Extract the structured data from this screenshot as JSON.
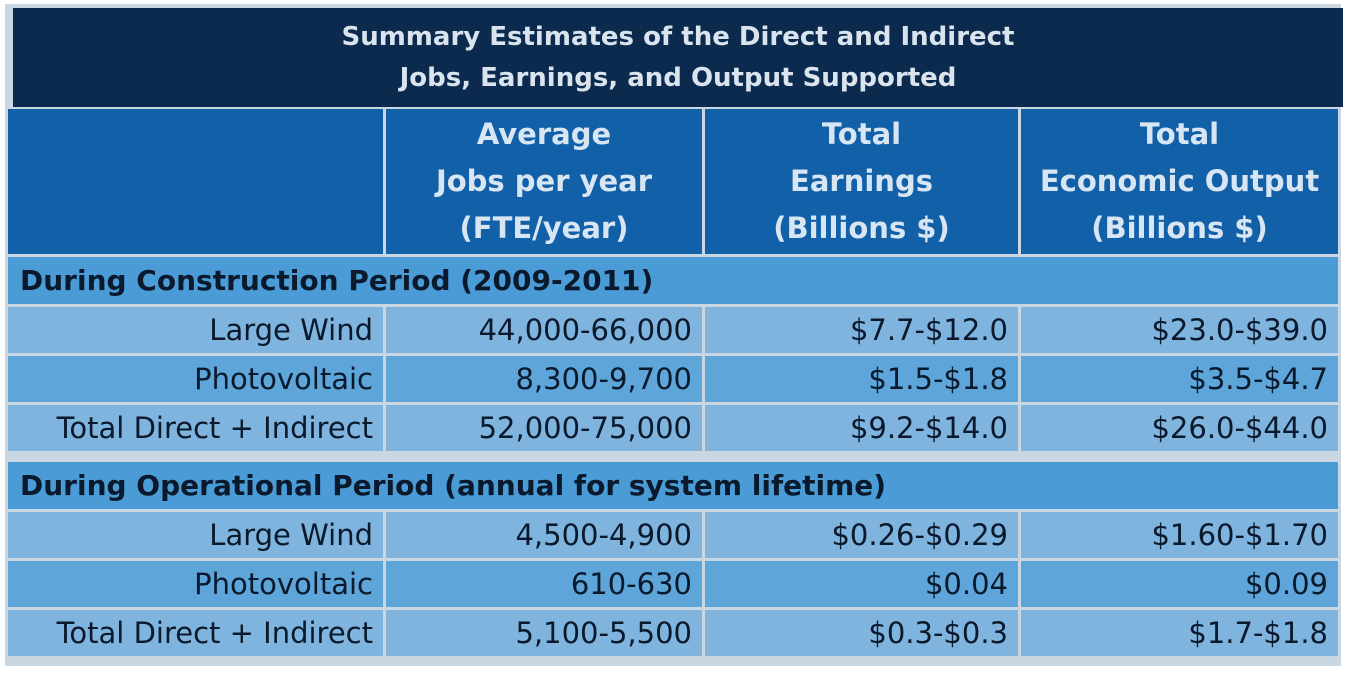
{
  "title": {
    "line1": "Summary Estimates of the Direct and Indirect",
    "line2": "Jobs, Earnings, and Output Supported"
  },
  "headers": [
    {
      "lines": [
        "",
        "",
        ""
      ]
    },
    {
      "lines": [
        "Average",
        "Jobs per year",
        "(FTE/year)"
      ]
    },
    {
      "lines": [
        "Total",
        "Earnings",
        "(Billions $)"
      ]
    },
    {
      "lines": [
        "Total",
        "Economic Output",
        "(Billions $)"
      ]
    }
  ],
  "sections": [
    {
      "label": "During Construction Period (2009-2011)",
      "rows": [
        {
          "name": "Large Wind",
          "jobs": "44,000-66,000",
          "earnings": "$7.7-$12.0",
          "output": "$23.0-$39.0"
        },
        {
          "name": "Photovoltaic",
          "jobs": "8,300-9,700",
          "earnings": "$1.5-$1.8",
          "output": "$3.5-$4.7"
        },
        {
          "name": "Total Direct + Indirect",
          "jobs": "52,000-75,000",
          "earnings": "$9.2-$14.0",
          "output": "$26.0-$44.0"
        }
      ]
    },
    {
      "label": "During Operational Period (annual for system lifetime)",
      "rows": [
        {
          "name": "Large Wind",
          "jobs": "4,500-4,900",
          "earnings": "$0.26-$0.29",
          "output": "$1.60-$1.70"
        },
        {
          "name": "Photovoltaic",
          "jobs": "610-630",
          "earnings": "$0.04",
          "output": "$0.09"
        },
        {
          "name": "Total Direct + Indirect",
          "jobs": "5,100-5,500",
          "earnings": "$0.3-$0.3",
          "output": "$1.7-$1.8"
        }
      ]
    }
  ]
}
